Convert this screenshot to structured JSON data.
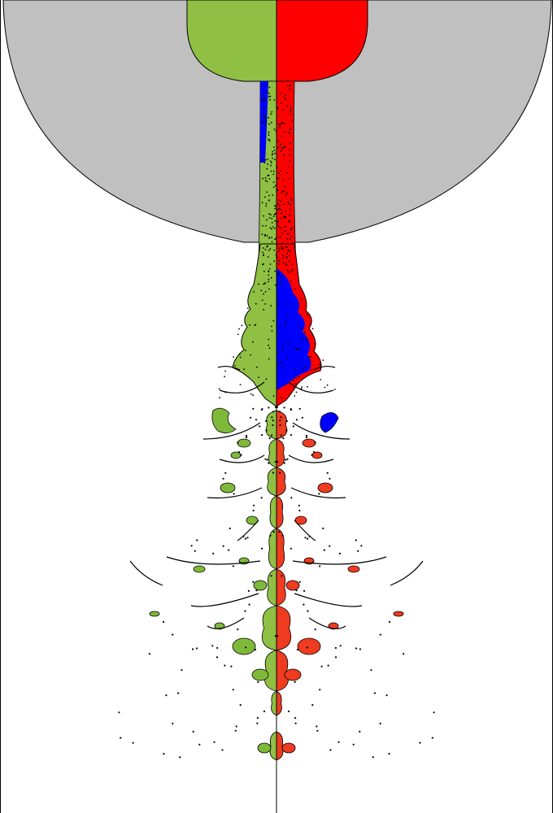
{
  "figure": {
    "colors": {
      "background": "#ffffff",
      "dome": "#c0c0c0",
      "left_fluid": "#8fc043",
      "right_fluid": "#ff0000",
      "core_fluid": "#0000ff",
      "fragment_left": "#7fb93a",
      "fragment_right": "#ef3b1f",
      "outline": "#000000"
    },
    "icons": [
      "fluid-jet-simulation"
    ]
  }
}
